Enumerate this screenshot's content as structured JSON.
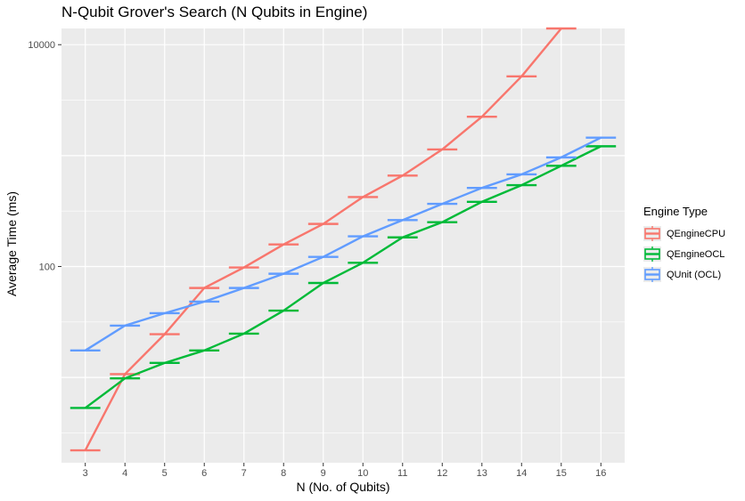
{
  "chart_data": {
    "type": "line",
    "title": "N-Qubit Grover's Search (N Qubits in Engine)",
    "xlabel": "N (No. of Qubits)",
    "ylabel": "Average Time (ms)",
    "y_scale": "log10",
    "ylim": [
      1.7,
      14000
    ],
    "xlim": [
      2.4,
      16.6
    ],
    "x": [
      3,
      4,
      5,
      6,
      7,
      8,
      9,
      10,
      11,
      12,
      13,
      14,
      15,
      16
    ],
    "x_tick_labels": [
      "3",
      "4",
      "5",
      "6",
      "7",
      "8",
      "9",
      "10",
      "11",
      "12",
      "13",
      "14",
      "15",
      "16"
    ],
    "y_ticks": [
      100,
      10000
    ],
    "y_tick_labels": [
      "100",
      "10000"
    ],
    "grid": true,
    "legend_title": "Engine Type",
    "legend_position": "right",
    "series": [
      {
        "name": "QEngineCPU",
        "color": "#F8766D",
        "values": [
          2.2,
          10.7,
          24.5,
          64,
          98,
          158,
          242,
          423,
          660,
          1137,
          2240,
          5180,
          14000,
          null
        ]
      },
      {
        "name": "QEngineOCL",
        "color": "#00BA38",
        "values": [
          5.3,
          9.8,
          13.5,
          17.5,
          24.8,
          40,
          71,
          108,
          183,
          251,
          383,
          541,
          809,
          1213
        ]
      },
      {
        "name": "QUnit (OCL)",
        "color": "#619CFF",
        "values": [
          17.5,
          29.3,
          37.9,
          48.2,
          64,
          86,
          122,
          187,
          262,
          367,
          511,
          677,
          963,
          1452
        ]
      }
    ]
  }
}
